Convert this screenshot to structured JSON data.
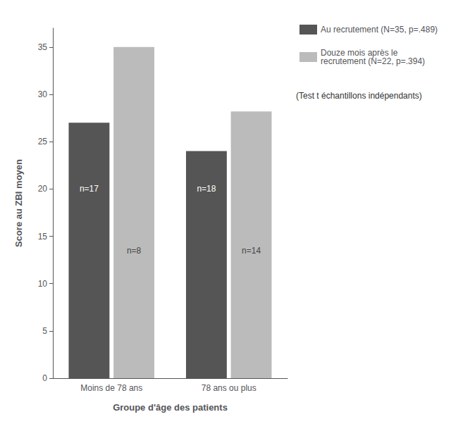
{
  "chart_data": {
    "type": "bar",
    "categories": [
      "Moins de 78 ans",
      "78 ans ou plus"
    ],
    "xlabel": "Groupe d'âge des patients",
    "ylabel": "Score au ZBI moyen",
    "series": [
      {
        "name": "Au recrutement (N=35, p=.489)",
        "color": "#555555",
        "values": [
          27.0,
          24.0
        ],
        "annotations": [
          {
            "text": "n=17",
            "y": 20.0
          },
          {
            "text": "n=18",
            "y": 20.0
          }
        ]
      },
      {
        "name": "Douze mois après le\nrecrutement (N=22, p=.394)",
        "color": "#bbbbbb",
        "values": [
          35.0,
          28.2
        ],
        "annotations": [
          {
            "text": "n=8",
            "y": 13.5
          },
          {
            "text": "n=14",
            "y": 13.5
          }
        ]
      }
    ],
    "footnote": "(Test t échantillons indépendants)",
    "ylim": [
      0,
      37
    ],
    "yticks": [
      0,
      5,
      10,
      15,
      20,
      25,
      30,
      35
    ],
    "grid": false,
    "legend": "right"
  }
}
